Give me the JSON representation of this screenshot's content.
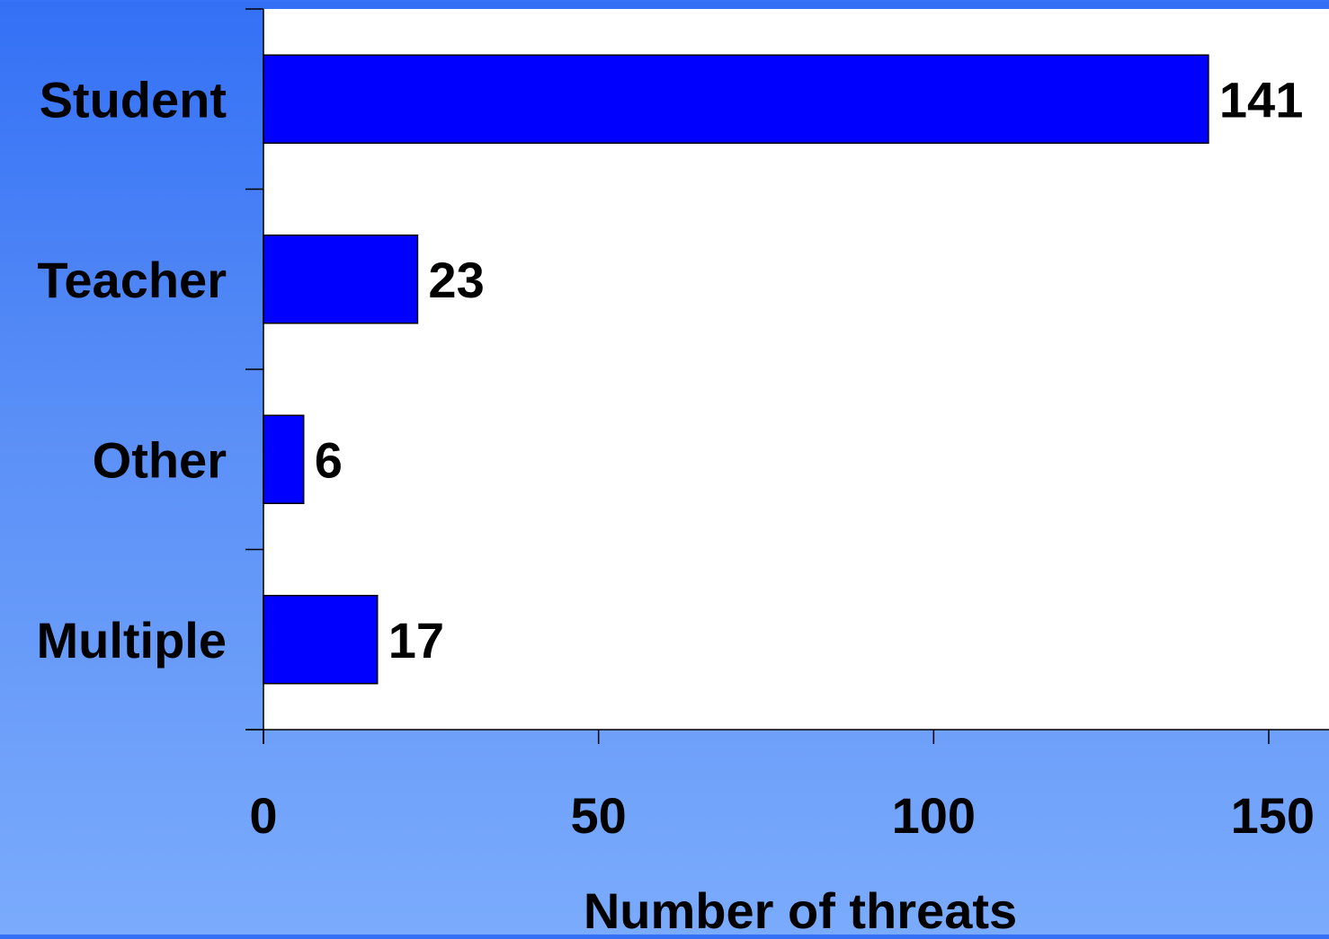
{
  "chart_data": {
    "type": "bar",
    "orientation": "horizontal",
    "categories": [
      "Student",
      "Teacher",
      "Other",
      "Multiple"
    ],
    "values": [
      141,
      23,
      6,
      17
    ],
    "value_labels": [
      "141",
      "23",
      "6",
      "17"
    ],
    "title": "",
    "xlabel": "Number of threats",
    "ylabel": "",
    "xlim": [
      0,
      160
    ],
    "xticks": [
      0,
      50,
      100,
      150
    ],
    "xtick_labels": [
      "0",
      "50",
      "100",
      "150"
    ],
    "grid": false,
    "legend": "none",
    "colors": {
      "bar_fill": "#0000ff",
      "bar_stroke": "#000000",
      "plot_background": "#ffffff",
      "page_background_top": "#3370f5",
      "page_background_bottom": "#7aabfc",
      "text": "#000000"
    }
  }
}
